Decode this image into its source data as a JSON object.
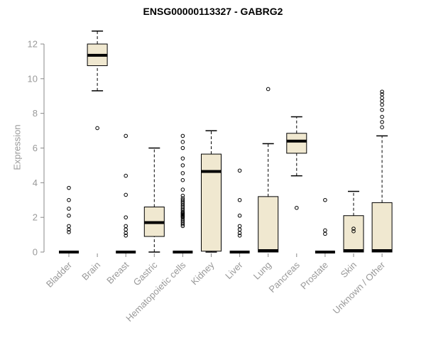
{
  "chart_data": {
    "type": "boxplot",
    "title": "ENSG00000113327 - GABRG2",
    "ylabel": "Expression",
    "ylim": [
      0,
      13
    ],
    "yticks": [
      0,
      2,
      4,
      6,
      8,
      10,
      12
    ],
    "grid": false,
    "legend": "none",
    "colors": {
      "box_fill": "#f0e8d0",
      "box_stroke": "#000000",
      "median": "#000000",
      "whisker": "#000000",
      "outlier": "#000000",
      "axis": "#888888",
      "tick_label": "#999999",
      "title": "#000000",
      "background": "#ffffff"
    },
    "categories": [
      "Bladder",
      "Brain",
      "Breast",
      "Gastric",
      "Hematopoietic cells",
      "Kidney",
      "Liver",
      "Lung",
      "Pancreas",
      "Prostate",
      "Skin",
      "Unknown / Other"
    ],
    "series": [
      {
        "name": "Bladder",
        "min": 0,
        "q1": 0,
        "median": 0,
        "q3": 0,
        "max": 0,
        "outliers": [
          1.15,
          1.3,
          1.5,
          2.1,
          2.5,
          3.0,
          3.7
        ]
      },
      {
        "name": "Brain",
        "min": 9.3,
        "q1": 10.75,
        "median": 11.35,
        "q3": 12.0,
        "max": 12.75,
        "outliers": [
          7.15
        ]
      },
      {
        "name": "Breast",
        "min": 0,
        "q1": 0,
        "median": 0,
        "q3": 0,
        "max": 0,
        "outliers": [
          0.95,
          1.1,
          1.3,
          1.5,
          2.0,
          3.3,
          4.4,
          6.7
        ]
      },
      {
        "name": "Gastric",
        "min": 0,
        "q1": 0.9,
        "median": 1.7,
        "q3": 2.6,
        "max": 6.0,
        "outliers": []
      },
      {
        "name": "Hematopoietic cells",
        "min": 0,
        "q1": 0,
        "median": 0,
        "q3": 0,
        "max": 0,
        "outliers": [
          1.5,
          1.6,
          1.7,
          1.8,
          1.9,
          2.0,
          2.05,
          2.1,
          2.15,
          2.2,
          2.25,
          2.3,
          2.4,
          2.5,
          2.6,
          2.7,
          2.8,
          2.9,
          3.0,
          3.1,
          3.25,
          3.6,
          4.15,
          4.55,
          5.0,
          5.4,
          6.0,
          6.35,
          6.7
        ]
      },
      {
        "name": "Kidney",
        "min": 0,
        "q1": 0.05,
        "median": 4.65,
        "q3": 5.65,
        "max": 7.0,
        "outliers": []
      },
      {
        "name": "Liver",
        "min": 0,
        "q1": 0,
        "median": 0,
        "q3": 0,
        "max": 0,
        "outliers": [
          0.95,
          1.1,
          1.3,
          1.5,
          2.1,
          3.0,
          4.7
        ]
      },
      {
        "name": "Lung",
        "min": 0,
        "q1": 0,
        "median": 0.08,
        "q3": 3.2,
        "max": 6.25,
        "outliers": [
          9.4
        ]
      },
      {
        "name": "Pancreas",
        "min": 4.4,
        "q1": 5.7,
        "median": 6.4,
        "q3": 6.85,
        "max": 7.8,
        "outliers": [
          2.55
        ]
      },
      {
        "name": "Prostate",
        "min": 0,
        "q1": 0,
        "median": 0,
        "q3": 0,
        "max": 0,
        "outliers": [
          1.05,
          1.25,
          3.0
        ]
      },
      {
        "name": "Skin",
        "min": 0,
        "q1": 0,
        "median": 0.08,
        "q3": 2.1,
        "max": 3.5,
        "outliers": [
          1.2,
          1.35
        ]
      },
      {
        "name": "Unknown / Other",
        "min": 0,
        "q1": 0,
        "median": 0.08,
        "q3": 2.85,
        "max": 6.7,
        "outliers": [
          7.2,
          7.5,
          7.8,
          8.2,
          8.5,
          8.7,
          8.9,
          9.1,
          9.25
        ]
      }
    ]
  }
}
